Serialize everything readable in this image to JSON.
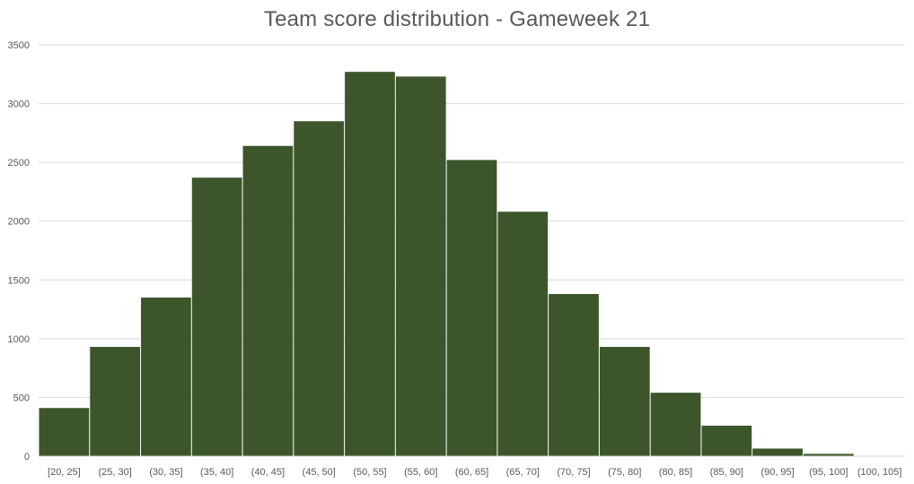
{
  "chart_data": {
    "type": "bar",
    "title": "Team score distribution - Gameweek 21",
    "xlabel": "",
    "ylabel": "",
    "categories": [
      "[20, 25]",
      "(25, 30]",
      "(30, 35]",
      "(35, 40]",
      "(40, 45]",
      "(45, 50]",
      "(50, 55]",
      "(55, 60]",
      "(60, 65]",
      "(65, 70]",
      "(70, 75]",
      "(75, 80]",
      "(80, 85]",
      "(85, 90]",
      "(90, 95]",
      "(95, 100]",
      "(100, 105]"
    ],
    "values": [
      410,
      930,
      1350,
      2370,
      2640,
      2850,
      3270,
      3230,
      2520,
      2080,
      1380,
      930,
      540,
      260,
      65,
      20,
      0
    ],
    "ylim": [
      0,
      3500
    ],
    "yticks": [
      0,
      500,
      1000,
      1500,
      2000,
      2500,
      3000,
      3500
    ],
    "grid": true,
    "bar_color": "#3d552b",
    "gridline_color": "#d9d9d9",
    "legend": "none"
  }
}
